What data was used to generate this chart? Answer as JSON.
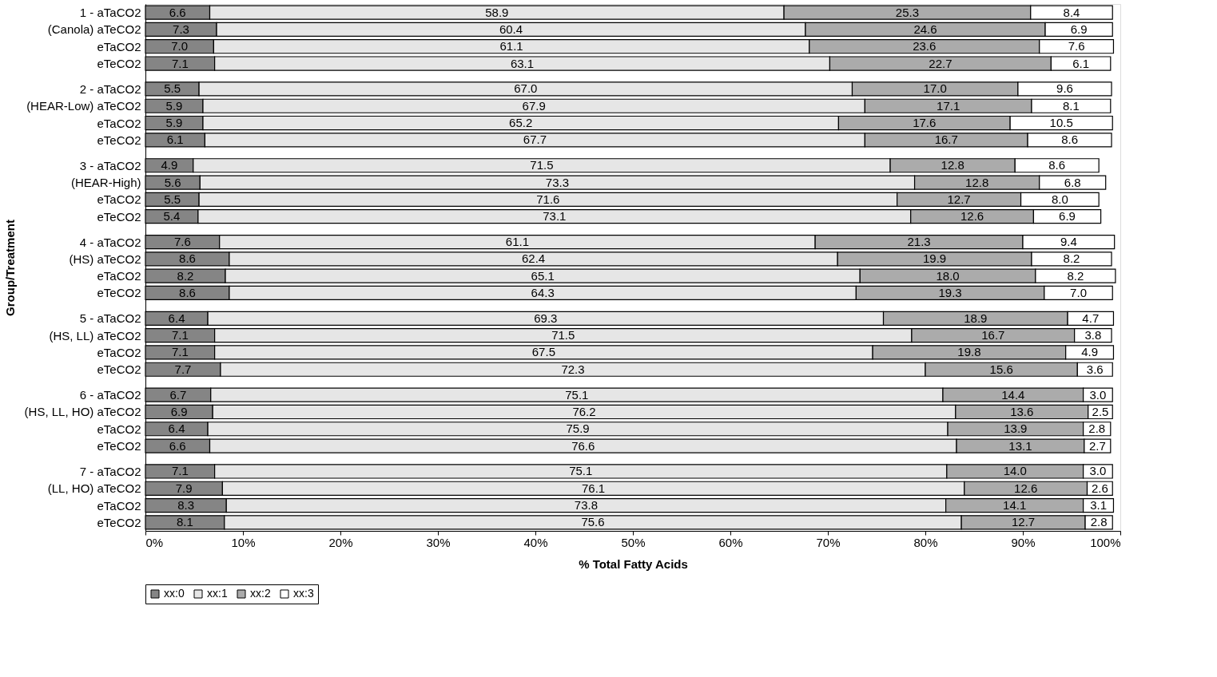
{
  "chart_data": {
    "type": "bar",
    "orientation": "horizontal",
    "stacked": true,
    "grid": false,
    "legend": "bottom",
    "xlabel": "% Total Fatty Acids",
    "ylabel": "Group/Treatment",
    "xlim": [
      0,
      100
    ],
    "xticks": [
      {
        "value": 0,
        "label": "0%"
      },
      {
        "value": 10,
        "label": "10%"
      },
      {
        "value": 20,
        "label": "20%"
      },
      {
        "value": 30,
        "label": "30%"
      },
      {
        "value": 40,
        "label": "40%"
      },
      {
        "value": 50,
        "label": "50%"
      },
      {
        "value": 60,
        "label": "60%"
      },
      {
        "value": 70,
        "label": "70%"
      },
      {
        "value": 80,
        "label": "80%"
      },
      {
        "value": 90,
        "label": "90%"
      },
      {
        "value": 100,
        "label": "100%"
      }
    ],
    "categories": [
      "1 - aTaCO2",
      "(Canola) aTeCO2",
      "eTaCO2",
      "eTeCO2",
      "2 - aTaCO2",
      "(HEAR-Low) aTeCO2",
      "eTaCO2",
      "eTeCO2",
      "3 - aTaCO2",
      "(HEAR-High)",
      "eTaCO2",
      "eTeCO2",
      "4 - aTaCO2",
      "(HS) aTeCO2",
      "eTaCO2",
      "eTeCO2",
      "5 - aTaCO2",
      "(HS, LL) aTeCO2",
      "eTaCO2",
      "eTeCO2",
      "6 - aTaCO2",
      "(HS, LL, HO) aTeCO2",
      "eTaCO2",
      "eTeCO2",
      "7 - aTaCO2",
      "(LL, HO) aTeCO2",
      "eTaCO2",
      "eTeCO2"
    ],
    "series": [
      {
        "name": "xx:0",
        "color": "#858585",
        "values": [
          6.6,
          7.3,
          7.0,
          7.1,
          5.5,
          5.9,
          5.9,
          6.1,
          4.9,
          5.6,
          5.5,
          5.4,
          7.6,
          8.6,
          8.2,
          8.6,
          6.4,
          7.1,
          7.1,
          7.7,
          6.7,
          6.9,
          6.4,
          6.6,
          7.1,
          7.9,
          8.3,
          8.1
        ],
        "value_labels": [
          "6.6",
          "7.3",
          "7.0",
          "7.1",
          "5.5",
          "5.9",
          "5.9",
          "6.1",
          "4.9",
          "5.6",
          "5.5",
          "5.4",
          "7.6",
          "8.6",
          "8.2",
          "8.6",
          "6.4",
          "7.1",
          "7.1",
          "7.7",
          "6.7",
          "6.9",
          "6.4",
          "6.6",
          "7.1",
          "7.9",
          "8.3",
          "8.1"
        ]
      },
      {
        "name": "xx:1",
        "color": "#e6e6e6",
        "values": [
          58.9,
          60.4,
          61.1,
          63.1,
          67.0,
          67.9,
          65.2,
          67.7,
          71.5,
          73.3,
          71.6,
          73.1,
          61.1,
          62.4,
          65.1,
          64.3,
          69.3,
          71.5,
          67.5,
          72.3,
          75.1,
          76.2,
          75.9,
          76.6,
          75.1,
          76.1,
          73.8,
          75.6
        ],
        "value_labels": [
          "58.9",
          "60.4",
          "61.1",
          "63.1",
          "67.0",
          "67.9",
          "65.2",
          "67.7",
          "71.5",
          "73.3",
          "71.6",
          "73.1",
          "61.1",
          "62.4",
          "65.1",
          "64.3",
          "69.3",
          "71.5",
          "67.5",
          "72.3",
          "75.1",
          "76.2",
          "75.9",
          "76.6",
          "75.1",
          "76.1",
          "73.8",
          "75.6"
        ]
      },
      {
        "name": "xx:2",
        "color": "#ababab",
        "values": [
          25.3,
          24.6,
          23.6,
          22.7,
          17.0,
          17.1,
          17.6,
          16.7,
          12.8,
          12.8,
          12.7,
          12.6,
          21.3,
          19.9,
          18.0,
          19.3,
          18.9,
          16.7,
          19.8,
          15.6,
          14.4,
          13.6,
          13.9,
          13.1,
          14.0,
          12.6,
          14.1,
          12.7
        ],
        "value_labels": [
          "25.3",
          "24.6",
          "23.6",
          "22.7",
          "17.0",
          "17.1",
          "17.6",
          "16.7",
          "12.8",
          "12.8",
          "12.7",
          "12.6",
          "21.3",
          "19.9",
          "18.0",
          "19.3",
          "18.9",
          "16.7",
          "19.8",
          "15.6",
          "14.4",
          "13.6",
          "13.9",
          "13.1",
          "14.0",
          "12.6",
          "14.1",
          "12.7"
        ]
      },
      {
        "name": "xx:3",
        "color": "#ffffff",
        "values": [
          8.4,
          6.9,
          7.6,
          6.1,
          9.6,
          8.1,
          10.5,
          8.6,
          8.6,
          6.8,
          8.0,
          6.9,
          9.4,
          8.2,
          8.2,
          7.0,
          4.7,
          3.8,
          4.9,
          3.6,
          3.0,
          2.5,
          2.8,
          2.7,
          3.0,
          2.6,
          3.1,
          2.8
        ],
        "value_labels": [
          "8.4",
          "6.9",
          "7.6",
          "6.1",
          "9.6",
          "8.1",
          "10.5",
          "8.6",
          "8.6",
          "6.8",
          "8.0",
          "6.9",
          "9.4",
          "8.2",
          "8.2",
          "7.0",
          "4.7",
          "3.8",
          "4.9",
          "3.6",
          "3.0",
          "2.5",
          "2.8",
          "2.7",
          "3.0",
          "2.6",
          "3.1",
          "2.8"
        ]
      }
    ]
  }
}
